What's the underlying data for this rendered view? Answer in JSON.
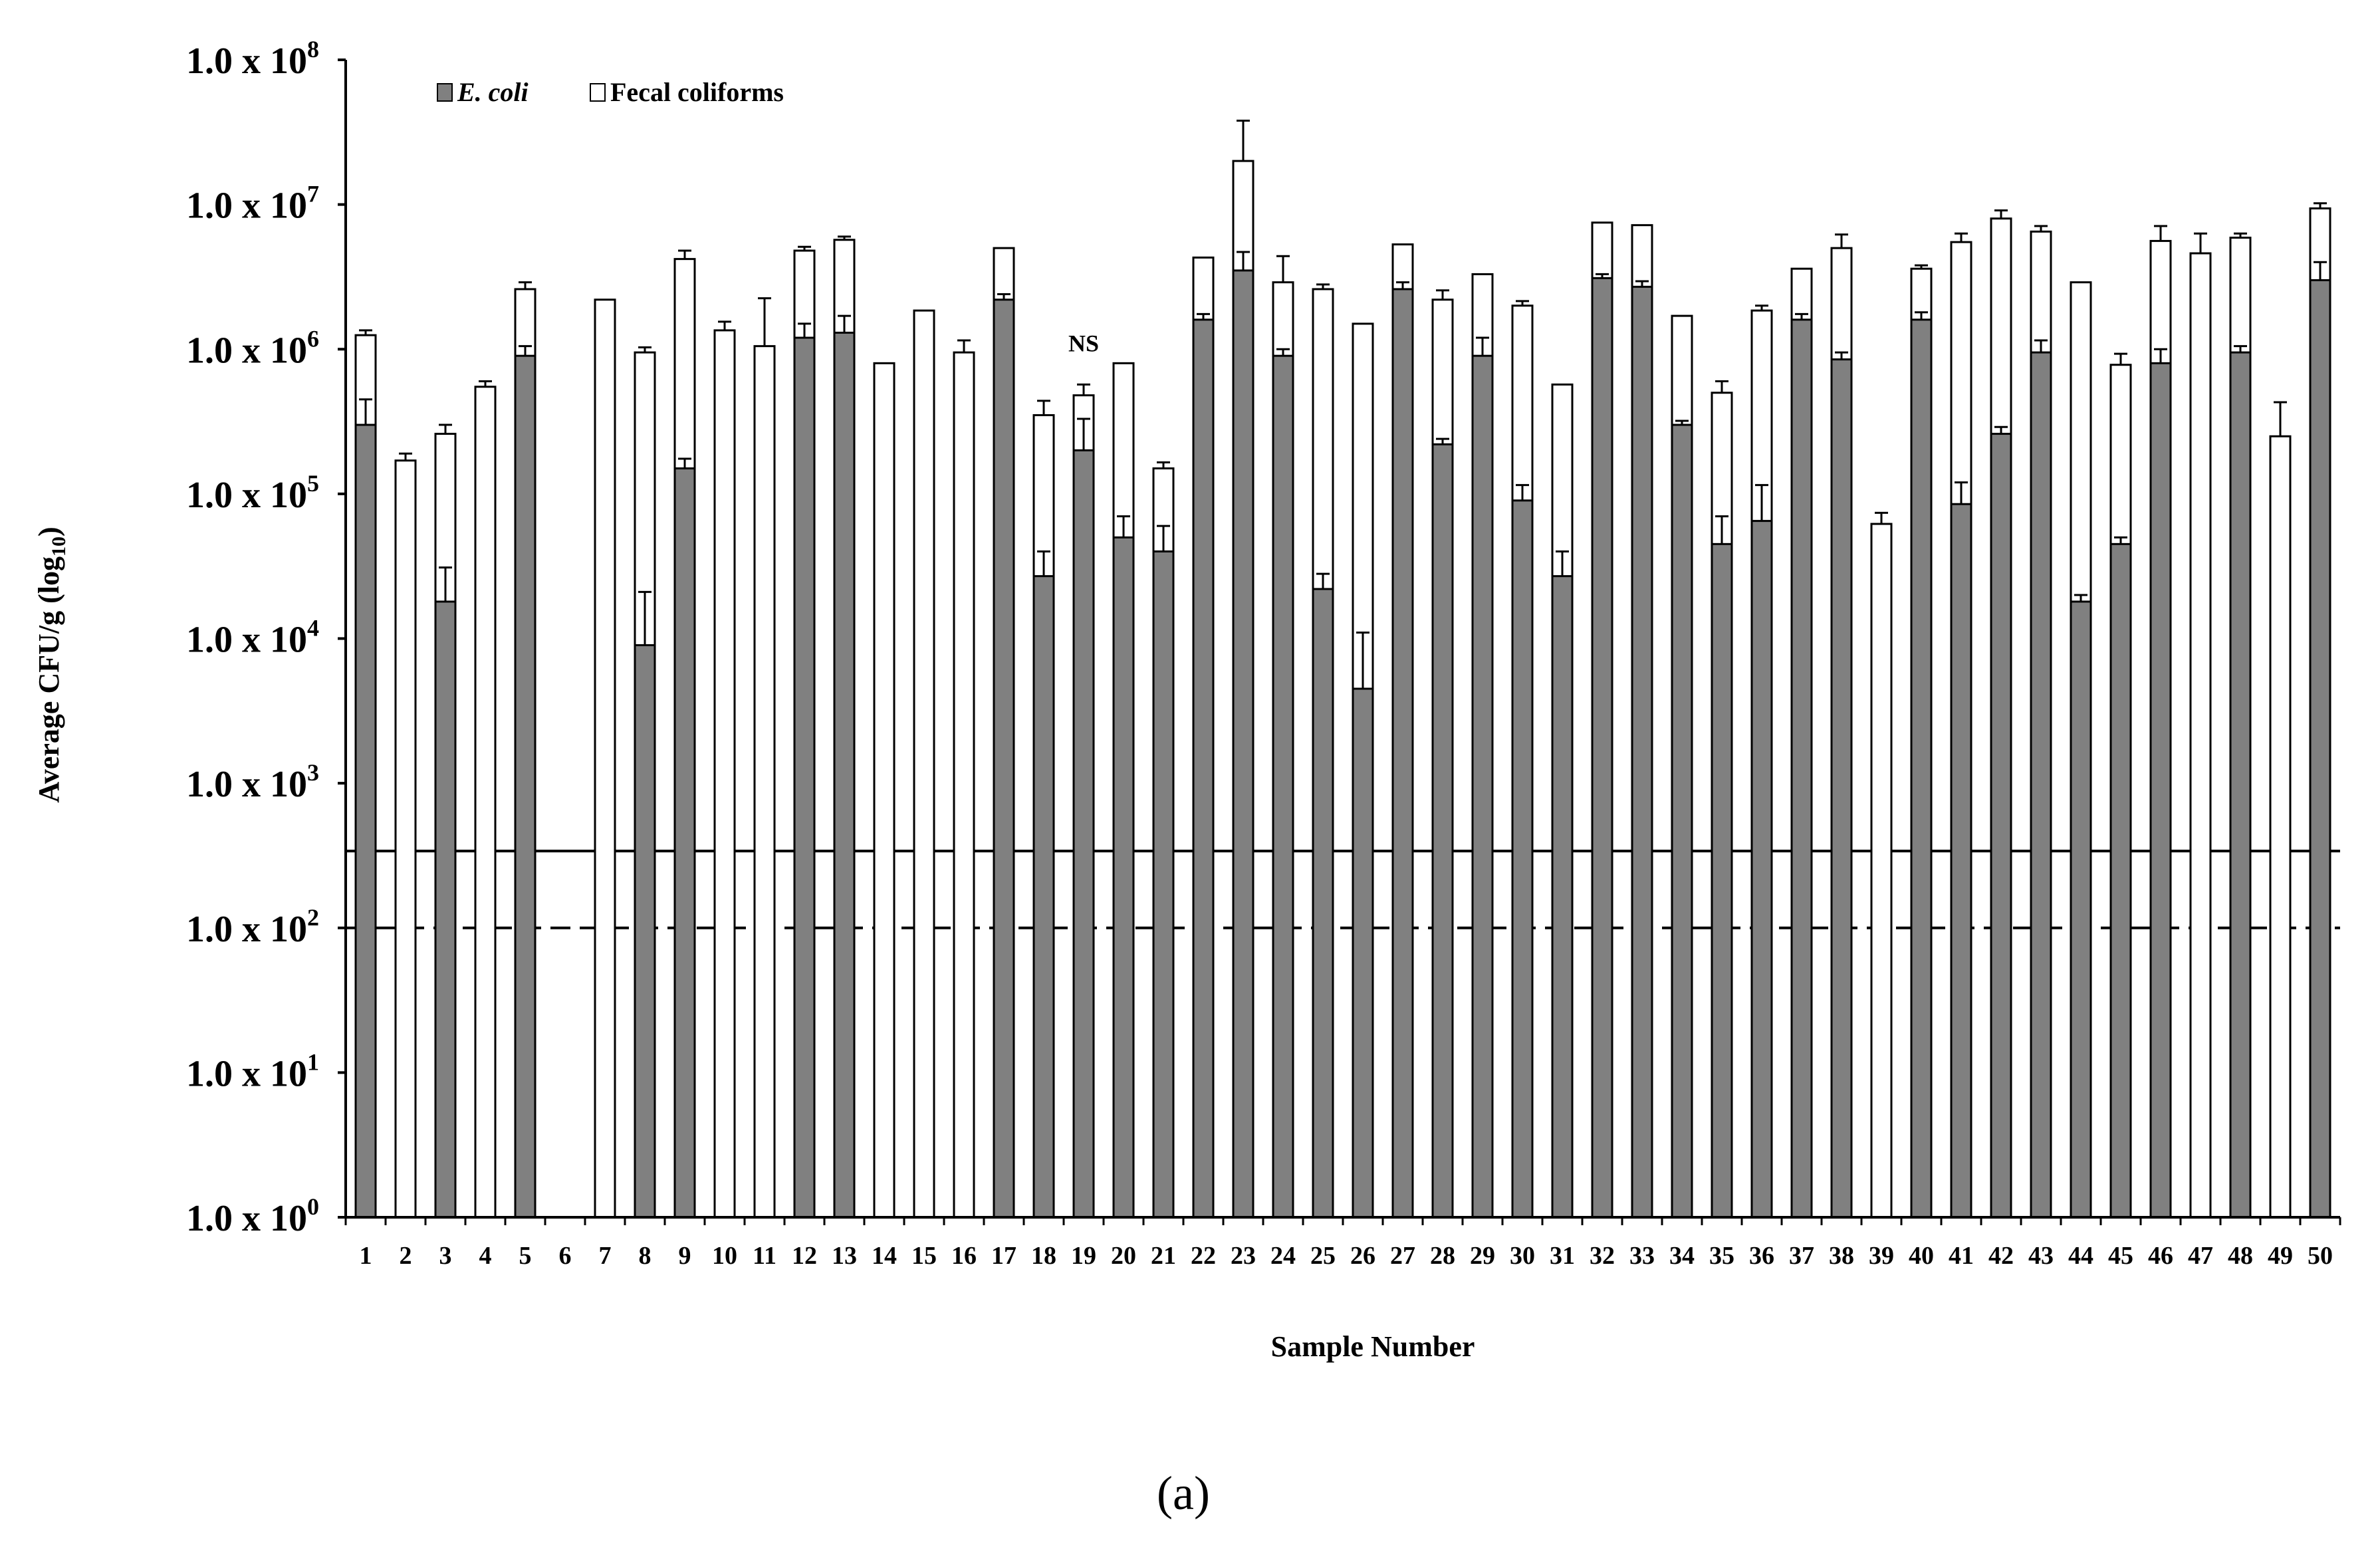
{
  "chart_data": {
    "type": "bar",
    "stacked": true,
    "y_scale": "log10",
    "ylim": [
      1,
      100000000
    ],
    "yticks": [
      {
        "base": "1.0 x 10",
        "exp": "0"
      },
      {
        "base": "1.0 x 10",
        "exp": "1"
      },
      {
        "base": "1.0 x 10",
        "exp": "2"
      },
      {
        "base": "1.0 x 10",
        "exp": "3"
      },
      {
        "base": "1.0 x 10",
        "exp": "4"
      },
      {
        "base": "1.0 x 10",
        "exp": "5"
      },
      {
        "base": "1.0 x 10",
        "exp": "6"
      },
      {
        "base": "1.0 x 10",
        "exp": "7"
      },
      {
        "base": "1.0 x 10",
        "exp": "8"
      }
    ],
    "ylabel_main": "Average CFU/g (log",
    "ylabel_sub": "10",
    "ylabel_end": ")",
    "xlabel": "Sample Number",
    "panel_label": "(a)",
    "legend_placement": "top-left",
    "categories": [
      "1",
      "2",
      "3",
      "4",
      "5",
      "6",
      "7",
      "8",
      "9",
      "10",
      "11",
      "12",
      "13",
      "14",
      "15",
      "16",
      "17",
      "18",
      "19",
      "20",
      "21",
      "22",
      "23",
      "24",
      "25",
      "26",
      "27",
      "28",
      "29",
      "30",
      "31",
      "32",
      "33",
      "34",
      "35",
      "36",
      "37",
      "38",
      "39",
      "40",
      "41",
      "42",
      "43",
      "44",
      "45",
      "46",
      "47",
      "48",
      "49",
      "50"
    ],
    "series": [
      {
        "name": "E. coli",
        "color": "#808080",
        "values": [
          300000,
          0,
          18000,
          0,
          900000,
          0,
          0,
          9000,
          150000,
          0,
          0,
          1200000,
          1300000,
          0,
          0,
          0,
          2200000,
          27000,
          200000,
          50000,
          40000,
          1600000,
          3500000,
          900000,
          22000,
          4500,
          2600000,
          220000,
          900000,
          90000,
          27000,
          3100000,
          2700000,
          300000,
          45000,
          65000,
          1600000,
          850000,
          0,
          1600000,
          85000,
          260000,
          950000,
          18000,
          45000,
          800000,
          0,
          950000,
          0,
          3000000
        ],
        "errors": [
          150000,
          0,
          13000,
          0,
          150000,
          0,
          0,
          12000,
          25000,
          0,
          0,
          300000,
          400000,
          0,
          0,
          0,
          200000,
          13000,
          130000,
          20000,
          20000,
          150000,
          1200000,
          100000,
          6000,
          6500,
          300000,
          20000,
          300000,
          25000,
          13000,
          200000,
          250000,
          20000,
          25000,
          50000,
          150000,
          100000,
          0,
          200000,
          35000,
          30000,
          200000,
          2000,
          5000,
          200000,
          0,
          100000,
          0,
          1000000
        ]
      },
      {
        "name": "Fecal coliforms",
        "color": "#ffffff",
        "values": [
          1250000,
          170000,
          260000,
          550000,
          2600000,
          0,
          2200000,
          950000,
          4200000,
          1350000,
          1050000,
          4800000,
          5700000,
          800000,
          1850000,
          950000,
          5000000,
          350000,
          480000,
          800000,
          150000,
          4300000,
          20000000,
          2900000,
          2600000,
          1500000,
          5300000,
          2200000,
          3300000,
          2000000,
          570000,
          7500000,
          7200000,
          1700000,
          500000,
          1850000,
          3600000,
          5000000,
          62000,
          3600000,
          5500000,
          8000000,
          6500000,
          2900000,
          780000,
          5600000,
          4600000,
          5900000,
          250000,
          9400000
        ],
        "errors": [
          100000,
          20000,
          40000,
          50000,
          300000,
          0,
          0,
          80000,
          600000,
          200000,
          1200000,
          300000,
          300000,
          0,
          0,
          200000,
          0,
          90000,
          90000,
          0,
          15000,
          0,
          18000000,
          1500000,
          200000,
          0,
          0,
          350000,
          0,
          150000,
          0,
          0,
          0,
          0,
          100000,
          150000,
          0,
          1200000,
          12000,
          200000,
          800000,
          1100000,
          600000,
          0,
          150000,
          1500000,
          1700000,
          400000,
          180000,
          800000
        ]
      }
    ],
    "reference_lines": [
      {
        "style": "solid",
        "value": 340
      },
      {
        "style": "dashed",
        "value": 100
      }
    ],
    "annotations": [
      {
        "text": "NS",
        "category": "19"
      }
    ]
  }
}
